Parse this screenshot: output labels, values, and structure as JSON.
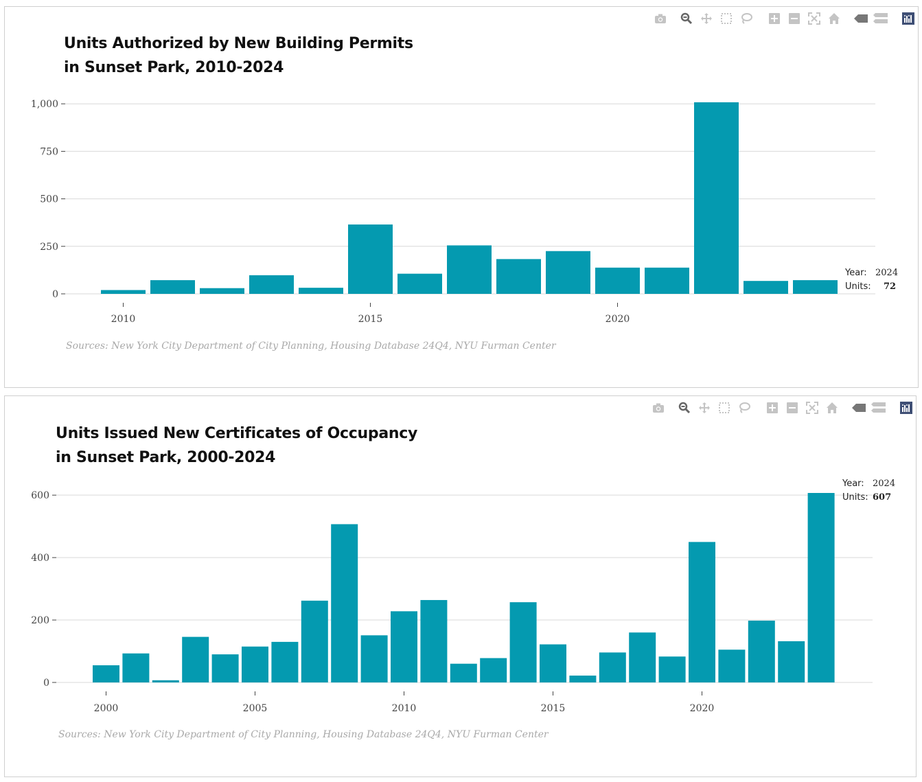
{
  "toolbar": {
    "icons": [
      "camera-icon",
      "zoom-icon",
      "pan-icon",
      "box-select-icon",
      "lasso-icon",
      "zoom-in-icon",
      "zoom-out-icon",
      "autoscale-icon",
      "reset-axes-icon",
      "hover-closest-icon",
      "hover-compare-icon",
      "plotly-logo-icon"
    ]
  },
  "colors": {
    "bar": "#049ab0",
    "grid": "#d9d9d9",
    "icon": "#c4c4c4",
    "logo": "#3f4f75"
  },
  "charts": [
    {
      "title_line1": "Units Authorized by New Building Permits",
      "title_line2": "in Sunset Park, 2010-2024",
      "source": "Sources: New York City Department of City Planning, Housing Database 24Q4, NYU Furman Center",
      "tooltip": {
        "year_label": "Year:",
        "year_value": "2024",
        "units_label": "Units:",
        "units_value": "72"
      }
    },
    {
      "title_line1": "Units Issued New Certificates of Occupancy",
      "title_line2": "in Sunset Park, 2000-2024",
      "source": "Sources: New York City Department of City Planning, Housing Database 24Q4, NYU Furman Center",
      "tooltip": {
        "year_label": "Year:",
        "year_value": "2024",
        "units_label": "Units:",
        "units_value": "607"
      }
    }
  ],
  "chart_data": [
    {
      "type": "bar",
      "title": "Units Authorized by New Building Permits in Sunset Park, 2010-2024",
      "x": [
        2010,
        2011,
        2012,
        2013,
        2014,
        2015,
        2016,
        2017,
        2018,
        2019,
        2020,
        2021,
        2022,
        2023,
        2024
      ],
      "values": [
        20,
        72,
        30,
        98,
        32,
        365,
        106,
        255,
        183,
        225,
        138,
        138,
        1008,
        68,
        72
      ],
      "xticks": [
        2010,
        2015,
        2020
      ],
      "yticks": [
        0,
        250,
        500,
        750,
        1000
      ],
      "ytick_labels": [
        "0",
        "250",
        "500",
        "750",
        "1,000"
      ],
      "ylim": [
        0,
        1008
      ],
      "xlim": [
        2009.5,
        2024.5
      ],
      "grid": true
    },
    {
      "type": "bar",
      "title": "Units Issued New Certificates of Occupancy in Sunset Park, 2000-2024",
      "x": [
        2000,
        2001,
        2002,
        2003,
        2004,
        2005,
        2006,
        2007,
        2008,
        2009,
        2010,
        2011,
        2012,
        2013,
        2014,
        2015,
        2016,
        2017,
        2018,
        2019,
        2020,
        2021,
        2022,
        2023,
        2024
      ],
      "values": [
        55,
        93,
        7,
        146,
        90,
        115,
        130,
        262,
        507,
        151,
        228,
        264,
        60,
        78,
        257,
        122,
        22,
        96,
        160,
        83,
        450,
        105,
        198,
        132,
        607
      ],
      "xticks": [
        2000,
        2005,
        2010,
        2015,
        2020
      ],
      "yticks": [
        0,
        200,
        400,
        600
      ],
      "ytick_labels": [
        "0",
        "200",
        "400",
        "600"
      ],
      "ylim": [
        0,
        607
      ],
      "xlim": [
        1999.5,
        2024.5
      ],
      "grid": true
    }
  ]
}
